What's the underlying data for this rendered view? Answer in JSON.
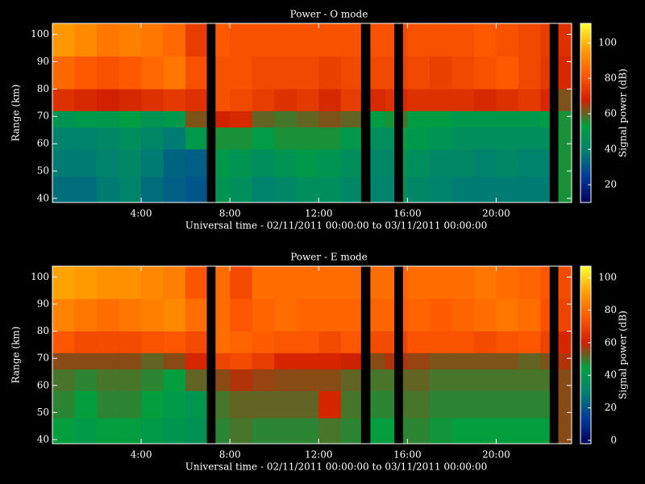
{
  "chart_data": [
    {
      "type": "heatmap",
      "title": "Power - O mode",
      "xlabel": "Universal time - 02/11/2011 00:00:00 to 03/11/2011 00:00:00",
      "ylabel": "Range (km)",
      "colorbar_label": "Signal power (dB)",
      "xbins": [
        0,
        1,
        2,
        3,
        4,
        5,
        6,
        6.95,
        7.35,
        8,
        9,
        10,
        11,
        12,
        13,
        13.9,
        14.33,
        15,
        15.4,
        15.8,
        16,
        17,
        18,
        19,
        20,
        21,
        22,
        22.4,
        22.8,
        23.4
      ],
      "ybins": [
        38.5,
        48,
        58,
        66,
        72,
        80,
        92,
        104
      ],
      "xlim": [
        0,
        23.4
      ],
      "ylim": [
        38.5,
        104
      ],
      "xticks": [
        {
          "value": 4,
          "label": "4:00"
        },
        {
          "value": 8,
          "label": "8:00"
        },
        {
          "value": 12,
          "label": "12:00"
        },
        {
          "value": 16,
          "label": "16:00"
        },
        {
          "value": 20,
          "label": "20:00"
        }
      ],
      "yticks": [
        40,
        50,
        60,
        70,
        80,
        90,
        100
      ],
      "clim": [
        10,
        111
      ],
      "cticks": [
        20,
        40,
        60,
        80,
        100
      ],
      "colorscale": [
        "#00005a",
        "#003a9a",
        "#008070",
        "#00a040",
        "#d02000",
        "#ff5a00",
        "#ffa000",
        "#ffff30"
      ],
      "z": [
        [
          35,
          38,
          40,
          48,
          72,
          85,
          95
        ],
        [
          35,
          38,
          40,
          50,
          70,
          82,
          92
        ],
        [
          38,
          40,
          42,
          50,
          68,
          80,
          88
        ],
        [
          40,
          42,
          45,
          52,
          70,
          82,
          90
        ],
        [
          35,
          38,
          42,
          48,
          72,
          85,
          88
        ],
        [
          32,
          33,
          38,
          50,
          74,
          88,
          85
        ],
        [
          30,
          32,
          50,
          62,
          72,
          80,
          75
        ],
        null,
        [
          48,
          50,
          55,
          68,
          80,
          80,
          82
        ],
        [
          45,
          48,
          55,
          70,
          78,
          80,
          80
        ],
        [
          40,
          45,
          52,
          60,
          75,
          78,
          80
        ],
        [
          42,
          48,
          55,
          58,
          72,
          78,
          80
        ],
        [
          45,
          50,
          55,
          60,
          74,
          78,
          80
        ],
        [
          45,
          48,
          55,
          62,
          70,
          76,
          80
        ],
        [
          42,
          45,
          50,
          60,
          75,
          78,
          80
        ],
        null,
        [
          40,
          42,
          45,
          52,
          70,
          78,
          80
        ],
        [
          40,
          42,
          45,
          55,
          72,
          78,
          80
        ],
        null,
        [
          45,
          48,
          52,
          58,
          70,
          76,
          78
        ],
        [
          42,
          45,
          50,
          52,
          72,
          78,
          80
        ],
        [
          40,
          42,
          48,
          52,
          72,
          76,
          80
        ],
        [
          38,
          42,
          45,
          50,
          72,
          78,
          80
        ],
        [
          38,
          40,
          45,
          50,
          70,
          80,
          82
        ],
        [
          38,
          42,
          45,
          50,
          72,
          82,
          80
        ],
        [
          38,
          40,
          45,
          50,
          74,
          78,
          78
        ],
        [
          38,
          40,
          45,
          52,
          70,
          74,
          75
        ],
        null,
        [
          55,
          55,
          55,
          55,
          62,
          70,
          72
        ]
      ]
    },
    {
      "type": "heatmap",
      "title": "Power - E mode",
      "xlabel": "Universal time - 02/11/2011 00:00:00 to 03/11/2011 00:00:00",
      "ylabel": "Range (km)",
      "colorbar_label": "Signal power (dB)",
      "xbins": [
        0,
        1,
        2,
        3,
        4,
        5,
        6,
        6.95,
        7.35,
        8,
        9,
        10,
        11,
        12,
        13,
        13.9,
        14.33,
        15,
        15.4,
        15.8,
        16,
        17,
        18,
        19,
        20,
        21,
        22,
        22.4,
        22.8,
        23.4
      ],
      "ybins": [
        38.5,
        48,
        58,
        66,
        72,
        80,
        92,
        104
      ],
      "xlim": [
        0,
        23.4
      ],
      "ylim": [
        38.5,
        104
      ],
      "xticks": [
        {
          "value": 4,
          "label": "4:00"
        },
        {
          "value": 8,
          "label": "8:00"
        },
        {
          "value": 12,
          "label": "12:00"
        },
        {
          "value": 16,
          "label": "16:00"
        },
        {
          "value": 20,
          "label": "20:00"
        }
      ],
      "yticks": [
        40,
        50,
        60,
        70,
        80,
        90,
        100
      ],
      "clim": [
        -2,
        107
      ],
      "cticks": [
        0,
        20,
        40,
        60,
        80,
        100
      ],
      "colorscale": [
        "#00005a",
        "#003a9a",
        "#008070",
        "#00a040",
        "#d02000",
        "#ff5a00",
        "#ffa000",
        "#ffff30"
      ],
      "z": [
        [
          45,
          48,
          50,
          55,
          75,
          85,
          92
        ],
        [
          42,
          45,
          48,
          55,
          72,
          82,
          90
        ],
        [
          45,
          48,
          50,
          55,
          72,
          80,
          88
        ],
        [
          45,
          48,
          50,
          55,
          72,
          82,
          88
        ],
        [
          42,
          45,
          48,
          52,
          74,
          84,
          86
        ],
        [
          40,
          42,
          45,
          55,
          75,
          86,
          84
        ],
        [
          38,
          40,
          52,
          62,
          72,
          80,
          75
        ],
        null,
        [
          48,
          50,
          55,
          70,
          80,
          80,
          80
        ],
        [
          50,
          52,
          58,
          72,
          78,
          75,
          72
        ],
        [
          48,
          52,
          56,
          68,
          76,
          78,
          80
        ],
        [
          48,
          52,
          55,
          62,
          75,
          80,
          80
        ],
        [
          48,
          52,
          55,
          62,
          75,
          78,
          80
        ],
        [
          50,
          62,
          55,
          62,
          72,
          78,
          80
        ],
        [
          48,
          50,
          52,
          60,
          75,
          78,
          80
        ],
        null,
        [
          45,
          48,
          50,
          55,
          72,
          78,
          80
        ],
        [
          45,
          48,
          50,
          58,
          72,
          78,
          80
        ],
        null,
        [
          48,
          50,
          52,
          58,
          70,
          76,
          78
        ],
        [
          48,
          50,
          52,
          56,
          74,
          78,
          80
        ],
        [
          46,
          48,
          50,
          54,
          74,
          76,
          80
        ],
        [
          45,
          48,
          50,
          54,
          74,
          78,
          80
        ],
        [
          45,
          48,
          50,
          54,
          72,
          80,
          82
        ],
        [
          45,
          48,
          50,
          54,
          74,
          82,
          80
        ],
        [
          45,
          48,
          50,
          52,
          75,
          80,
          78
        ],
        [
          45,
          48,
          50,
          54,
          70,
          74,
          75
        ],
        null,
        [
          55,
          55,
          55,
          58,
          62,
          70,
          72
        ]
      ]
    }
  ]
}
